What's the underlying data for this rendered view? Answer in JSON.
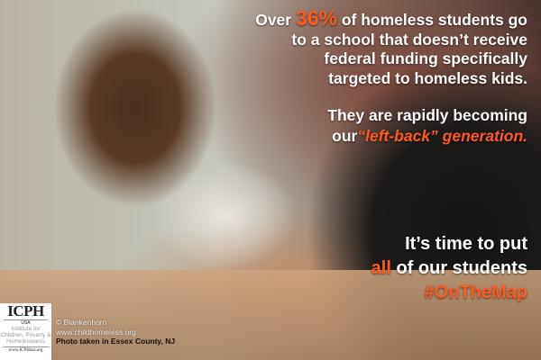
{
  "headline": {
    "pre": "Over ",
    "stat": "36%",
    "post": " of homeless students go",
    "lines": [
      "to a school that doesn’t receive",
      "federal funding specifically",
      "targeted to homeless kids."
    ]
  },
  "second": {
    "line1": "They are rapidly becoming",
    "pre": "our",
    "emph": "“left-back” generation."
  },
  "cta": {
    "line1": "It’s time to put",
    "all": "all",
    "rest": " of our students",
    "hashtag": "#OnTheMap"
  },
  "logo": {
    "name": "ICPH",
    "country": "USA",
    "subtitle": "Institute for Children, Poverty & Homelessness",
    "url": "www.ICPHusa.org"
  },
  "credits": {
    "copyright": "© Blankenhorn",
    "site": "www.childhomeless.org",
    "location": "Photo taken in Essex County, NJ"
  },
  "colors": {
    "accent": "#ff5a1f",
    "text": "#ffffff"
  }
}
